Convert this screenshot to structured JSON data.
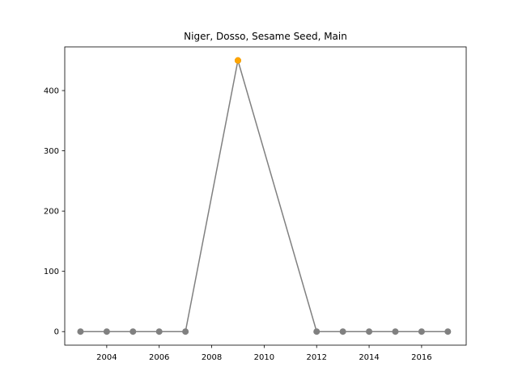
{
  "chart_data": {
    "type": "line",
    "title": "Niger, Dosso, Sesame Seed, Main",
    "xlabel": "",
    "ylabel": "",
    "x": [
      2003,
      2004,
      2005,
      2006,
      2007,
      2009,
      2012,
      2013,
      2014,
      2015,
      2016,
      2017
    ],
    "series": [
      {
        "values": [
          0,
          0,
          0,
          0,
          0,
          450,
          0,
          0,
          0,
          0,
          0,
          0
        ],
        "line_color": "#808080",
        "marker_color": "#808080"
      }
    ],
    "highlight_points": [
      {
        "x": 2009,
        "y": 450,
        "color": "#ffa500"
      }
    ],
    "xlim": [
      2002.4,
      2017.7
    ],
    "ylim": [
      -22.5,
      472.5
    ],
    "xticks": [
      2004,
      2006,
      2008,
      2010,
      2012,
      2014,
      2016
    ],
    "yticks": [
      0,
      100,
      200,
      300,
      400
    ],
    "grid": false,
    "legend": "none"
  }
}
